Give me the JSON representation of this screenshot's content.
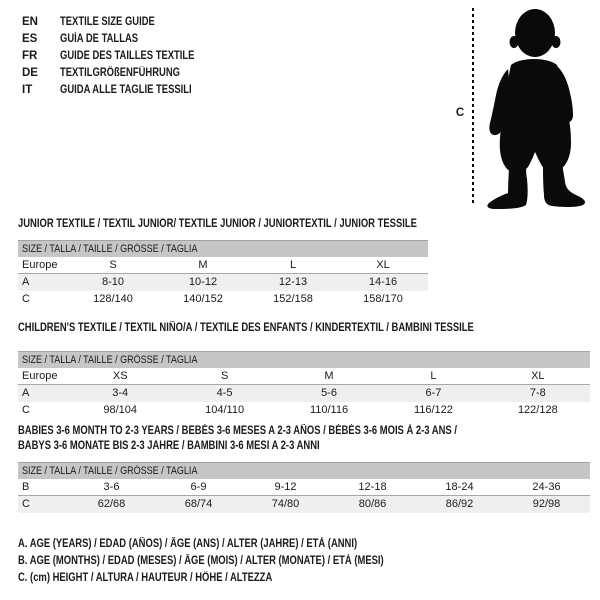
{
  "language_guide": {
    "items": [
      {
        "code": "EN",
        "label": "TEXTILE SIZE GUIDE"
      },
      {
        "code": "ES",
        "label": "GUÍA DE TALLAS"
      },
      {
        "code": "FR",
        "label": "GUIDE DES TAILLES TEXTILE"
      },
      {
        "code": "DE",
        "label": "TEXTILGRÖßENFÜHRUNG"
      },
      {
        "code": "IT",
        "label": "GUIDA ALLE TAGLIE TESSILI"
      }
    ]
  },
  "figure": {
    "height_label": "C",
    "description": "standing toddler silhouette with dotted height line"
  },
  "colors": {
    "table_header_bar": "#c6c6c6",
    "row_shade": "#efefef",
    "text": "#1a1a1a"
  },
  "tables": [
    {
      "title_lines": [
        "JUNIOR TEXTILE / TEXTIL JUNIOR/ TEXTILE JUNIOR / JUNIORTEXTIL / JUNIOR TESSILE"
      ],
      "header": "SIZE / TALLA / TAILLE / GRÖSSE / TAGLIA",
      "rows": [
        {
          "label": "Europe",
          "cells": [
            "S",
            "M",
            "L",
            "XL"
          ],
          "variant": "divider"
        },
        {
          "label": "A",
          "cells": [
            "8-10",
            "10-12",
            "12-13",
            "14-16"
          ],
          "variant": "shade"
        },
        {
          "label": "C",
          "cells": [
            "128/140",
            "140/152",
            "152/158",
            "158/170"
          ],
          "variant": "plain"
        }
      ]
    },
    {
      "title_lines": [
        "CHILDREN'S TEXTILE / TEXTIL NIÑO/A / TEXTILE DES ENFANTS / KINDERTEXTIL / BAMBINI TESSILE"
      ],
      "header": "SIZE / TALLA / TAILLE / GRÖSSE / TAGLIA",
      "rows": [
        {
          "label": "Europe",
          "cells": [
            "XS",
            "S",
            "M",
            "L",
            "XL"
          ],
          "variant": "divider"
        },
        {
          "label": "A",
          "cells": [
            "3-4",
            "4-5",
            "5-6",
            "6-7",
            "7-8"
          ],
          "variant": "shade"
        },
        {
          "label": "C",
          "cells": [
            "98/104",
            "104/110",
            "110/116",
            "116/122",
            "122/128"
          ],
          "variant": "plain"
        }
      ]
    },
    {
      "title_lines": [
        "BABIES 3-6 MONTH TO 2-3 YEARS / BEBÉS 3-6 MESES A 2-3 AÑOS / BÉBÉS 3-6 MOIS À 2-3 ANS /",
        "BABYS 3-6 MONATE BIS 2-3 JAHRE / BAMBINI 3-6 MESI A 2-3 ANNI"
      ],
      "header": "SIZE / TALLA / TAILLE / GRÖSSE / TAGLIA",
      "rows": [
        {
          "label": "B",
          "cells": [
            "3-6",
            "6-9",
            "9-12",
            "12-18",
            "18-24",
            "24-36"
          ],
          "variant": "divider"
        },
        {
          "label": "C",
          "cells": [
            "62/68",
            "68/74",
            "74/80",
            "80/86",
            "86/92",
            "92/98"
          ],
          "variant": "shade"
        }
      ]
    }
  ],
  "footnotes": [
    "A. AGE (YEARS) / EDAD (AÑOS) / ÂGE (ANS) / ALTER (JAHRE) / ETÀ (ANNI)",
    "B. AGE (MONTHS) / EDAD (MESES) / ÂGE (MOIS) / ALTER (MONATE) / ETÀ (MESI)",
    "C. (cm) HEIGHT / ALTURA / HAUTEUR / HÖHE / ALTEZZA"
  ]
}
